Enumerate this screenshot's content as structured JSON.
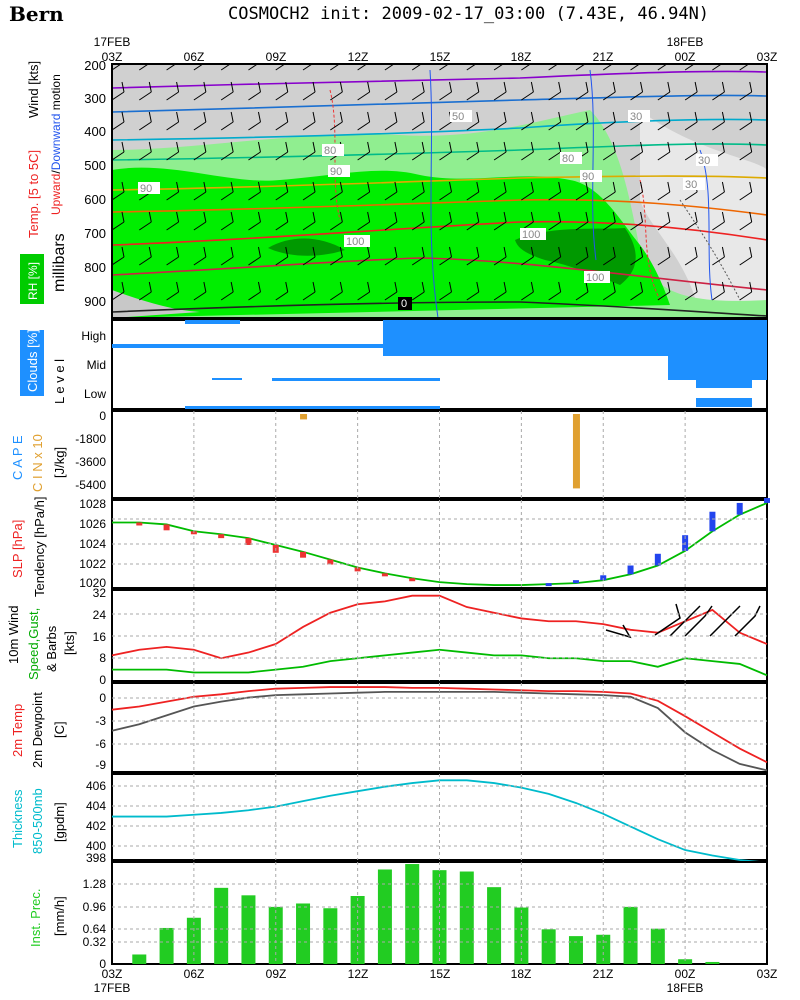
{
  "header": {
    "station": "Bern",
    "title": "COSMOCH2 init: 2009-02-17_03:00 (7.43E, 46.94N)"
  },
  "time_axis": {
    "ticks": [
      "03Z",
      "06Z",
      "09Z",
      "12Z",
      "15Z",
      "18Z",
      "21Z",
      "00Z",
      "03Z"
    ],
    "dates_top": [
      {
        "at": "03Z",
        "text": "17FEB"
      },
      {
        "at": "00Z",
        "text": "18FEB"
      }
    ],
    "dates_bottom": [
      {
        "at": "03Z",
        "text": "17FEB"
      },
      {
        "at": "00Z",
        "text": "18FEB"
      }
    ]
  },
  "panels": {
    "profile": {
      "labels": [
        "Wind [kts]",
        "Upward/Downward motion",
        "Temp. [5 to 5C]",
        "RH [%]",
        "millibars"
      ],
      "label_words": {
        "wind": "Wind [kts]",
        "upward": "Upward",
        "slash": "/",
        "downward": "Downward",
        "motion": " motion",
        "temp": "Temp. [5 to 5C]",
        "rh": "RH [%]",
        "millibars": "millibars"
      },
      "ticks": [
        "200",
        "300",
        "400",
        "500",
        "600",
        "700",
        "800",
        "900"
      ],
      "rh_labels": [
        "50",
        "80",
        "90",
        "90",
        "90",
        "80",
        "30",
        "30",
        "30",
        "100",
        "100",
        "100",
        "0"
      ],
      "colors": {
        "rh_high": "#00ee00",
        "rh_mid": "#90ee90",
        "rh_dark": "#008800",
        "rh_grey": "#bbbbbb"
      }
    },
    "clouds": {
      "labels": [
        "Clouds [%]",
        "L e v e l"
      ],
      "ticks": [
        "High",
        "Mid",
        "Low"
      ],
      "color": "#1e90ff"
    },
    "cape": {
      "labels": [
        "C A P E",
        "C I N x 10",
        "[J/kg]"
      ],
      "ticks": [
        "0",
        "-1800",
        "-3600",
        "-5400"
      ],
      "color_cape": "#1e90ff",
      "color_cin": "#e0a030"
    },
    "slp": {
      "labels": [
        "SLP [hPa]",
        "Tendency [hPa/h]"
      ],
      "ticks": [
        "1028",
        "1026",
        "1024",
        "1022",
        "1020"
      ]
    },
    "wind10m": {
      "labels": [
        "10m Wind",
        "Speed,Gust,",
        "& Barbs",
        "[kts]"
      ],
      "ticks": [
        "32",
        "24",
        "16",
        "8",
        "0"
      ]
    },
    "temp2m": {
      "labels": [
        "2m Temp",
        "2m Dewpoint",
        "[C]"
      ],
      "ticks": [
        "0",
        "-3",
        "-6",
        "-9"
      ]
    },
    "thickness": {
      "labels": [
        "Thickness",
        "850-500mb",
        "[gpdm]"
      ],
      "ticks": [
        "406",
        "404",
        "402",
        "400",
        "398"
      ]
    },
    "precip": {
      "labels": [
        "Inst. Prec.",
        "[mm/h]"
      ],
      "ticks": [
        "1.28",
        "0.96",
        "0.64",
        "0.32",
        "0"
      ]
    }
  },
  "chart_data": [
    {
      "type": "line",
      "title": "SLP",
      "x_hours": [
        0,
        1,
        2,
        3,
        4,
        5,
        6,
        7,
        8,
        9,
        10,
        11,
        12,
        13,
        14,
        15,
        16,
        17,
        18,
        19,
        20,
        21,
        22,
        23,
        24
      ],
      "ylim": [
        1019.5,
        1028.5
      ],
      "series": [
        {
          "name": "SLP [hPa]",
          "color": "#00bb00",
          "values": [
            1026.2,
            1026.2,
            1026.0,
            1025.3,
            1025.0,
            1024.6,
            1023.9,
            1023.2,
            1022.4,
            1021.6,
            1021.0,
            1020.5,
            1020.1,
            1019.9,
            1019.8,
            1019.8,
            1019.9,
            1020.0,
            1020.3,
            1020.9,
            1021.8,
            1023.3,
            1025.3,
            1027.0,
            1028.2
          ]
        },
        {
          "name": "Tendency [hPa/h]",
          "values": [
            0,
            -0.2,
            -0.6,
            -0.3,
            -0.4,
            -0.7,
            -0.8,
            -0.6,
            -0.5,
            -0.4,
            -0.2,
            -0.1,
            0,
            0,
            0,
            0,
            0.1,
            0.3,
            0.5,
            0.9,
            1.2,
            1.6,
            2.0,
            1.2,
            0.5
          ]
        }
      ]
    },
    {
      "type": "line",
      "title": "10m Wind",
      "x_hours": [
        0,
        1,
        2,
        3,
        4,
        5,
        6,
        7,
        8,
        9,
        10,
        11,
        12,
        13,
        14,
        15,
        16,
        17,
        18,
        19,
        20,
        21,
        22,
        23,
        24
      ],
      "ylim": [
        0,
        32
      ],
      "series": [
        {
          "name": "Gust",
          "color": "#ee2222",
          "values": [
            9,
            11,
            12,
            11,
            8,
            10,
            13,
            19,
            24,
            27,
            28,
            30,
            30,
            26,
            24,
            22,
            21,
            21,
            20,
            18,
            17,
            21,
            25,
            17,
            13
          ]
        },
        {
          "name": "Speed",
          "color": "#00bb00",
          "values": [
            4,
            4,
            4,
            3,
            3,
            3,
            4,
            5,
            7,
            8,
            9,
            10,
            11,
            10,
            9,
            9,
            8,
            8,
            7,
            7,
            5,
            8,
            7,
            6,
            2
          ]
        }
      ]
    },
    {
      "type": "line",
      "title": "2m Temp",
      "x_hours": [
        0,
        1,
        2,
        3,
        4,
        5,
        6,
        7,
        8,
        9,
        10,
        11,
        12,
        13,
        14,
        15,
        16,
        17,
        18,
        19,
        20,
        21,
        22,
        23,
        24
      ],
      "ylim": [
        -9.5,
        1.5
      ],
      "series": [
        {
          "name": "2m Temp",
          "color": "#ee2222",
          "values": [
            -1.8,
            -1.4,
            -0.8,
            -0.2,
            0.1,
            0.5,
            0.8,
            0.9,
            1.0,
            1.0,
            1.0,
            0.9,
            0.9,
            0.8,
            0.7,
            0.6,
            0.5,
            0.5,
            0.4,
            0.2,
            -0.7,
            -2.6,
            -4.6,
            -6.6,
            -8.3
          ]
        },
        {
          "name": "2m Dewpoint",
          "color": "#555555",
          "values": [
            -4.4,
            -3.6,
            -2.5,
            -1.4,
            -0.8,
            -0.3,
            0.0,
            0.1,
            0.2,
            0.3,
            0.4,
            0.4,
            0.4,
            0.4,
            0.4,
            0.3,
            0.2,
            0.1,
            0.0,
            -0.2,
            -1.6,
            -4.6,
            -6.8,
            -8.5,
            -9.3
          ]
        }
      ]
    },
    {
      "type": "line",
      "title": "Thickness 850-500mb",
      "x_hours": [
        0,
        1,
        2,
        3,
        4,
        5,
        6,
        7,
        8,
        9,
        10,
        11,
        12,
        13,
        14,
        15,
        16,
        17,
        18,
        19,
        20,
        21,
        22,
        23,
        24
      ],
      "ylim": [
        398,
        407.5
      ],
      "series": [
        {
          "name": "Thickness",
          "color": "#00bbcc",
          "values": [
            402.8,
            402.8,
            402.8,
            403.0,
            403.2,
            403.5,
            403.9,
            404.5,
            405.1,
            405.6,
            406.1,
            406.5,
            406.8,
            406.8,
            406.5,
            406.0,
            405.3,
            404.3,
            403.1,
            401.7,
            400.3,
            399.1,
            398.5,
            398.0,
            397.7
          ]
        }
      ]
    },
    {
      "type": "bar",
      "title": "Inst. Prec.",
      "ylabel": "[mm/h]",
      "x_hours": [
        1,
        2,
        3,
        4,
        5,
        6,
        7,
        8,
        9,
        10,
        11,
        12,
        13,
        14,
        15,
        16,
        17,
        18,
        19,
        20,
        21,
        22,
        23
      ],
      "values": [
        0.14,
        0.53,
        0.68,
        1.12,
        1.01,
        0.84,
        0.89,
        0.82,
        1.0,
        1.39,
        1.47,
        1.38,
        1.36,
        1.13,
        0.83,
        0.51,
        0.41,
        0.43,
        0.84,
        0.52,
        0.07,
        0.03,
        0.0
      ],
      "color": "#22cc22",
      "ylim": [
        0,
        1.5
      ]
    },
    {
      "type": "bar",
      "title": "CAPE / CIN",
      "x_hours": [
        7,
        17
      ],
      "values": [
        -450,
        -6200
      ],
      "ylim": [
        -7000,
        0
      ]
    }
  ]
}
